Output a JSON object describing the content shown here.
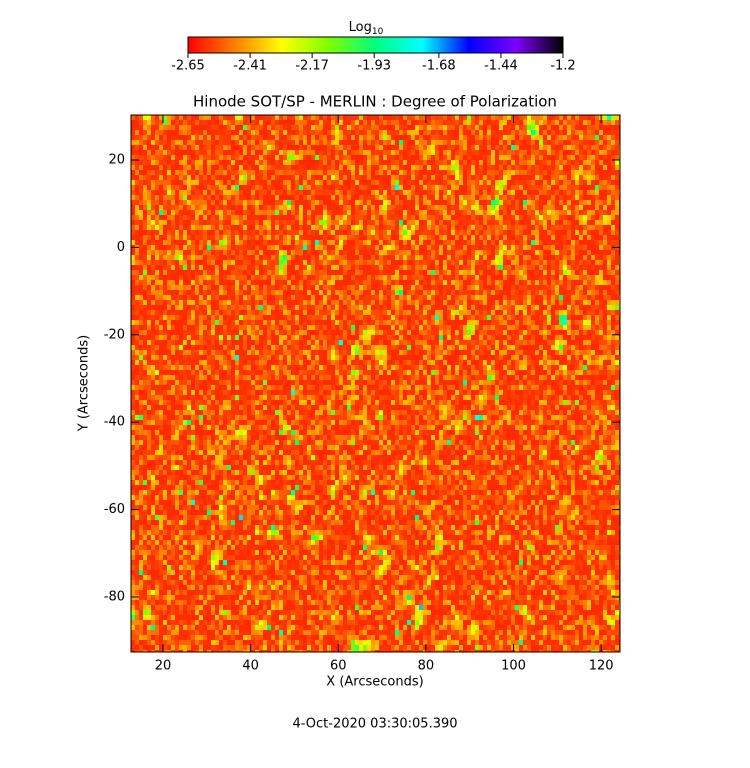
{
  "chart_data": {
    "type": "heatmap",
    "title": "Hinode SOT/SP - MERLIN : Degree of Polarization",
    "x_label": "X (Arcseconds)",
    "y_label": "Y (Arcseconds)",
    "xlim": [
      12.7,
      124.3
    ],
    "ylim": [
      -92.6,
      30.3
    ],
    "xticks": [
      20,
      40,
      60,
      80,
      100,
      120
    ],
    "yticks": [
      20,
      0,
      -20,
      -40,
      -60,
      -80
    ],
    "colorbar": {
      "label": "Log",
      "label_subscript": "10",
      "lim": [
        -2.65,
        -1.2
      ],
      "ticks": [
        -2.65,
        -2.41,
        -2.17,
        -1.93,
        -1.68,
        -1.44,
        -1.2
      ],
      "colormap": [
        "#ff0000",
        "#ff7f00",
        "#ffff00",
        "#7fff00",
        "#00ff7f",
        "#00ffff",
        "#0000ff",
        "#7f00ff",
        "#000000"
      ]
    },
    "footer": "4-Oct-2020 03:30:05.390"
  }
}
